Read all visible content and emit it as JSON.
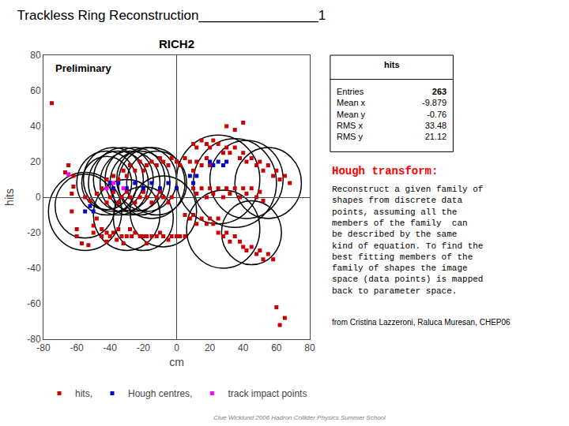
{
  "chart_data": {
    "type": "scatter",
    "title": "Trackless Ring Reconstruction________________1",
    "subtitle": "RICH2",
    "xlabel": "cm",
    "ylabel": "hits",
    "xlim": [
      -80,
      80
    ],
    "ylim": [
      -80,
      80
    ],
    "xticks": [
      -80,
      -60,
      -40,
      -20,
      0,
      20,
      40,
      60,
      80
    ],
    "yticks": [
      -80,
      -60,
      -40,
      -20,
      0,
      20,
      40,
      60,
      80
    ],
    "grid": false,
    "legend": "lower left",
    "annotations": [
      "Preliminary",
      "Hough transform:",
      "Reconstruct a given family of\nshapes from discrete data\npoints, assuming all the\nmembers of the family  can\nbe described by the same\nkind of equation. To find the\nbest fitting members of the\nfamily of shapes the image\nspace (data points) is mapped\nback to parameter space.",
      "from Cristina Lazzeroni, Raluca Muresan, CHEP06",
      "Clue Wicklund 2006 Hadron Collider Physics Summer School"
    ],
    "stats": {
      "title": "hits",
      "rows": [
        {
          "label": "Entries",
          "value": 263
        },
        {
          "label": "Mean x",
          "value": -9.879
        },
        {
          "label": "Mean y",
          "value": -0.76
        },
        {
          "label": "RMS x",
          "value": 33.48
        },
        {
          "label": "RMS y",
          "value": 21.12
        }
      ]
    },
    "series": [
      {
        "name": "hits,",
        "color": "#cc0000",
        "marker": "square",
        "x": [
          -75,
          -65,
          -67,
          -62,
          -62,
          -63,
          -63,
          -60,
          -60,
          -57,
          -53,
          -50,
          -50,
          -48,
          -45,
          -45,
          -42,
          -42,
          -40,
          -38,
          -36,
          -35,
          -33,
          -32,
          -30,
          -28,
          -27,
          -25,
          -22,
          -20,
          -18,
          -18,
          -15,
          -12,
          -10,
          -8,
          -5,
          -3,
          0,
          2,
          5,
          -55,
          -52,
          -48,
          -45,
          -42,
          -40,
          -38,
          -35,
          -32,
          -30,
          -28,
          -25,
          -22,
          -20,
          -18,
          -15,
          -12,
          -10,
          -8,
          -5,
          -3,
          0,
          2,
          5,
          8,
          10,
          12,
          15,
          18,
          20,
          -42,
          -40,
          -38,
          -35,
          -33,
          -30,
          -28,
          -25,
          -22,
          -20,
          -18,
          -15,
          -12,
          -10,
          -8,
          -5,
          -3,
          10,
          12,
          15,
          18,
          20,
          22,
          25,
          28,
          30,
          32,
          35,
          38,
          40,
          42,
          45,
          48,
          50,
          52,
          55,
          58,
          60,
          62,
          65,
          68,
          10,
          12,
          15,
          18,
          20,
          22,
          25,
          28,
          30,
          32,
          35,
          38,
          40,
          42,
          45,
          48,
          50,
          52,
          25,
          28,
          30,
          32,
          35,
          38,
          40,
          42,
          45,
          48,
          50,
          52,
          55,
          58,
          5,
          8,
          10,
          12,
          15,
          18,
          20,
          22,
          25,
          60,
          65,
          62,
          30,
          35,
          40
        ],
        "values": [
          53,
          18,
          14,
          12,
          6,
          2,
          -8,
          -18,
          -22,
          -26,
          -27,
          -20,
          -16,
          -12,
          -22,
          -18,
          -25,
          -20,
          -22,
          -20,
          -24,
          -18,
          -22,
          -26,
          -22,
          -18,
          -22,
          -20,
          -22,
          -22,
          -26,
          -22,
          -22,
          -22,
          -20,
          -22,
          -24,
          -22,
          -22,
          -22,
          -22,
          0,
          -2,
          2,
          5,
          10,
          8,
          12,
          10,
          15,
          12,
          18,
          15,
          20,
          15,
          18,
          20,
          18,
          22,
          20,
          18,
          22,
          20,
          18,
          22,
          20,
          15,
          20,
          18,
          22,
          18,
          -3,
          0,
          3,
          -3,
          0,
          3,
          0,
          -3,
          0,
          3,
          0,
          -3,
          0,
          3,
          0,
          -3,
          0,
          30,
          28,
          32,
          30,
          28,
          32,
          30,
          25,
          28,
          25,
          28,
          22,
          25,
          20,
          22,
          18,
          20,
          15,
          18,
          12,
          15,
          10,
          12,
          8,
          5,
          2,
          5,
          0,
          5,
          2,
          5,
          0,
          5,
          2,
          5,
          0,
          5,
          2,
          5,
          0,
          3,
          -2,
          -20,
          -22,
          -20,
          -25,
          -22,
          -25,
          -28,
          -30,
          -28,
          -32,
          -30,
          -35,
          -32,
          -35,
          -10,
          -12,
          -10,
          -15,
          -12,
          -15,
          -12,
          -15,
          -12,
          -62,
          -68,
          -72,
          40,
          38,
          42
        ]
      },
      {
        "name": "Hough centres,",
        "color": "#0000cc",
        "marker": "square",
        "x": [
          -40,
          -38,
          -35,
          -30,
          -25,
          -20,
          -15,
          -10,
          -5,
          0,
          20,
          22,
          25,
          28,
          30,
          -55,
          -52,
          -50,
          8,
          10,
          12
        ],
        "values": [
          8,
          5,
          8,
          5,
          8,
          5,
          8,
          5,
          8,
          5,
          20,
          18,
          20,
          18,
          20,
          -8,
          -5,
          -8,
          12,
          8,
          12
        ]
      },
      {
        "name": "track impact points",
        "color": "#ff00ff",
        "marker": "square",
        "x": [
          -65,
          -42,
          -38,
          -32
        ],
        "values": [
          13,
          5,
          8,
          5
        ]
      }
    ],
    "circles": [
      {
        "cx": -42,
        "cy": 8,
        "r": 18
      },
      {
        "cx": -42,
        "cy": 8,
        "r": 15
      },
      {
        "cx": -38,
        "cy": 10,
        "r": 18
      },
      {
        "cx": -35,
        "cy": 8,
        "r": 18
      },
      {
        "cx": -32,
        "cy": 10,
        "r": 18
      },
      {
        "cx": -28,
        "cy": 8,
        "r": 18
      },
      {
        "cx": -25,
        "cy": 10,
        "r": 18
      },
      {
        "cx": -22,
        "cy": 8,
        "r": 18
      },
      {
        "cx": -18,
        "cy": 10,
        "r": 18
      },
      {
        "cx": -15,
        "cy": 8,
        "r": 20
      },
      {
        "cx": -12,
        "cy": 8,
        "r": 18
      },
      {
        "cx": -55,
        "cy": -8,
        "r": 22
      },
      {
        "cx": -55,
        "cy": -5,
        "r": 18
      },
      {
        "cx": -30,
        "cy": -10,
        "r": 20
      },
      {
        "cx": -20,
        "cy": -12,
        "r": 18
      },
      {
        "cx": -8,
        "cy": -8,
        "r": 20
      },
      {
        "cx": 25,
        "cy": 10,
        "r": 25
      },
      {
        "cx": 35,
        "cy": 8,
        "r": 25
      },
      {
        "cx": 42,
        "cy": 10,
        "r": 22
      },
      {
        "cx": 55,
        "cy": 8,
        "r": 20
      },
      {
        "cx": 28,
        "cy": -18,
        "r": 22
      },
      {
        "cx": 45,
        "cy": -20,
        "r": 18
      }
    ]
  }
}
